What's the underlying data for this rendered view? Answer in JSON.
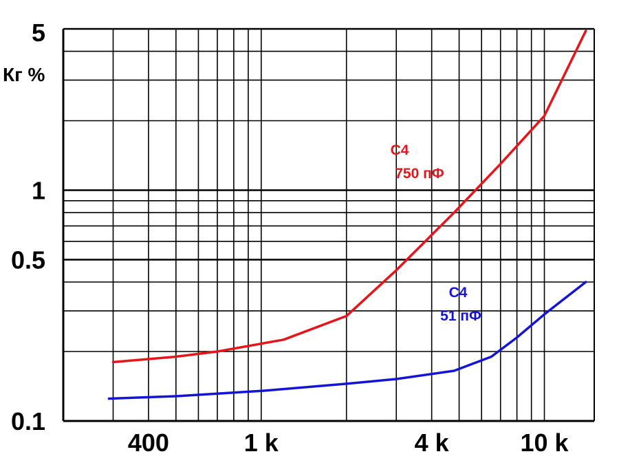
{
  "chart_data": {
    "type": "line",
    "title": "",
    "xlabel": "",
    "ylabel": "Кг %",
    "x_scale": "log",
    "y_scale": "log",
    "xlim": [
      200,
      15000
    ],
    "ylim": [
      0.1,
      5
    ],
    "x_tick_labels": [
      {
        "value": 400,
        "label": "400"
      },
      {
        "value": 1000,
        "label": "1 k"
      },
      {
        "value": 4000,
        "label": "4 k"
      },
      {
        "value": 10000,
        "label": "10 k"
      }
    ],
    "y_tick_labels": [
      {
        "value": 0.1,
        "label": "0.1"
      },
      {
        "value": 0.5,
        "label": "0.5"
      },
      {
        "value": 1,
        "label": "1"
      },
      {
        "value": 5,
        "label": "5"
      }
    ],
    "grid": true,
    "series": [
      {
        "component": "C4",
        "value_label": "750 пФ",
        "color": "#e8141a",
        "points": [
          [
            300,
            0.18
          ],
          [
            500,
            0.19
          ],
          [
            700,
            0.2
          ],
          [
            1200,
            0.225
          ],
          [
            2000,
            0.285
          ],
          [
            3000,
            0.45
          ],
          [
            4800,
            0.8
          ],
          [
            7000,
            1.3
          ],
          [
            10000,
            2.1
          ],
          [
            14000,
            4.9
          ]
        ]
      },
      {
        "component": "C4",
        "value_label": "51 пФ",
        "color": "#1414d6",
        "points": [
          [
            290,
            0.125
          ],
          [
            500,
            0.128
          ],
          [
            1000,
            0.135
          ],
          [
            2000,
            0.145
          ],
          [
            3000,
            0.152
          ],
          [
            4800,
            0.165
          ],
          [
            6500,
            0.19
          ],
          [
            8000,
            0.23
          ],
          [
            10000,
            0.29
          ],
          [
            14000,
            0.4
          ]
        ]
      }
    ]
  }
}
